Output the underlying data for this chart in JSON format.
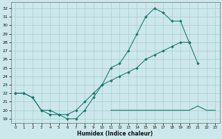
{
  "xlabel": "Humidex (Indice chaleur)",
  "bg_color": "#cce8ec",
  "grid_color": "#aacccc",
  "line_color": "#1a7a6e",
  "xlim": [
    -0.5,
    23.5
  ],
  "ylim": [
    18.5,
    32.7
  ],
  "yticks": [
    19,
    20,
    21,
    22,
    23,
    24,
    25,
    26,
    27,
    28,
    29,
    30,
    31,
    32
  ],
  "xticks": [
    0,
    1,
    2,
    3,
    4,
    5,
    6,
    7,
    8,
    9,
    10,
    11,
    12,
    13,
    14,
    15,
    16,
    17,
    18,
    19,
    20,
    21,
    22,
    23
  ],
  "curve1_x": [
    0,
    1,
    2,
    3,
    4,
    5,
    6,
    7,
    8,
    9,
    10,
    11,
    12,
    13,
    14,
    15,
    16,
    17,
    18,
    19,
    20,
    21
  ],
  "curve1_y": [
    22,
    22,
    21.5,
    20,
    19.5,
    19.5,
    19,
    19,
    20,
    21.5,
    23,
    25,
    25.5,
    27,
    29,
    31,
    32,
    31.5,
    30.5,
    30.5,
    28,
    25.5
  ],
  "curve2_x": [
    0,
    1,
    2,
    3,
    4,
    5,
    6,
    7,
    8,
    9,
    10,
    11,
    12,
    13,
    14,
    15,
    16,
    17,
    18,
    19,
    20
  ],
  "curve2_y": [
    22,
    22,
    21.5,
    20,
    20,
    19.5,
    19.5,
    20,
    21,
    22,
    23,
    23.5,
    24,
    24.5,
    25,
    26,
    26.5,
    27,
    27.5,
    28,
    28
  ],
  "curve3_x": [
    11,
    12,
    13,
    14,
    15,
    16,
    17,
    18,
    19,
    20,
    21,
    22,
    23
  ],
  "curve3_y": [
    20,
    20,
    20,
    20,
    20,
    20,
    20,
    20,
    20,
    20,
    20.5,
    20,
    20
  ]
}
